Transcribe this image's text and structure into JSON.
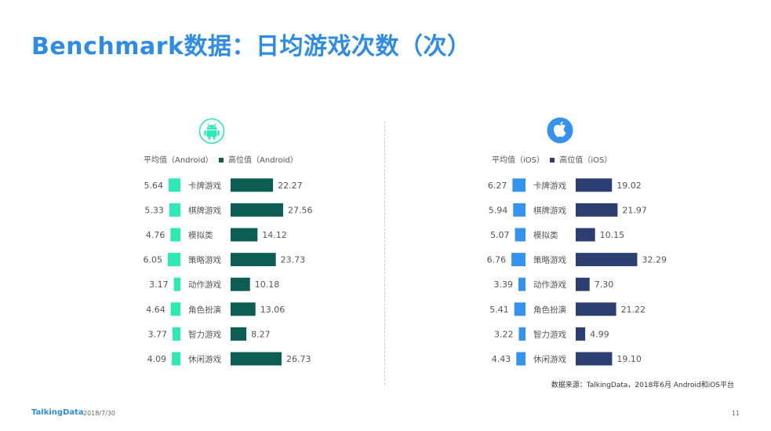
{
  "page": {
    "title": "Benchmark数据：日均游戏次数（次）",
    "source_note": "数据来源：TalkingData，2018年6月 Android和iOS平台",
    "footer_brand": "TalkingData",
    "footer_date": "2018/7/30",
    "page_number": "11"
  },
  "chart_data": [
    {
      "type": "bar",
      "platform_icon": "android-icon",
      "legend": [
        "平均值（Android）",
        "高位值（Android）"
      ],
      "categories": [
        "卡牌游戏",
        "棋牌游戏",
        "模拟类",
        "策略游戏",
        "动作游戏",
        "角色扮演",
        "智力游戏",
        "休闲游戏"
      ],
      "series": [
        {
          "name": "平均值（Android）",
          "color": "#2ee8b6",
          "values": [
            5.64,
            5.33,
            4.76,
            6.05,
            3.17,
            4.64,
            3.77,
            4.09
          ],
          "labels": [
            "5.64",
            "5.33",
            "4.76",
            "6.05",
            "3.17",
            "4.64",
            "3.77",
            "4.09"
          ]
        },
        {
          "name": "高位值（Android）",
          "color": "#0c5e52",
          "values": [
            22.27,
            27.56,
            14.12,
            23.73,
            10.18,
            13.06,
            8.27,
            26.73
          ],
          "labels": [
            "22.27",
            "27.56",
            "14.12",
            "23.73",
            "10.18",
            "13.06",
            "8.27",
            "26.73"
          ]
        }
      ]
    },
    {
      "type": "bar",
      "platform_icon": "apple-icon",
      "legend": [
        "平均值（iOS）",
        "高位值（iOS）"
      ],
      "categories": [
        "卡牌游戏",
        "棋牌游戏",
        "模拟类",
        "策略游戏",
        "动作游戏",
        "角色扮演",
        "智力游戏",
        "休闲游戏"
      ],
      "series": [
        {
          "name": "平均值（iOS）",
          "color": "#3593ee",
          "values": [
            6.27,
            5.94,
            5.07,
            6.76,
            3.39,
            5.41,
            3.22,
            4.43
          ],
          "labels": [
            "6.27",
            "5.94",
            "5.07",
            "6.76",
            "3.39",
            "5.41",
            "3.22",
            "4.43"
          ]
        },
        {
          "name": "高位值（iOS）",
          "color": "#2b3f73",
          "values": [
            19.02,
            21.97,
            10.15,
            32.29,
            7.3,
            21.22,
            4.99,
            19.1
          ],
          "labels": [
            "19.02",
            "21.97",
            "10.15",
            "32.29",
            "7.30",
            "21.22",
            "4.99",
            "19.10"
          ]
        }
      ]
    }
  ]
}
